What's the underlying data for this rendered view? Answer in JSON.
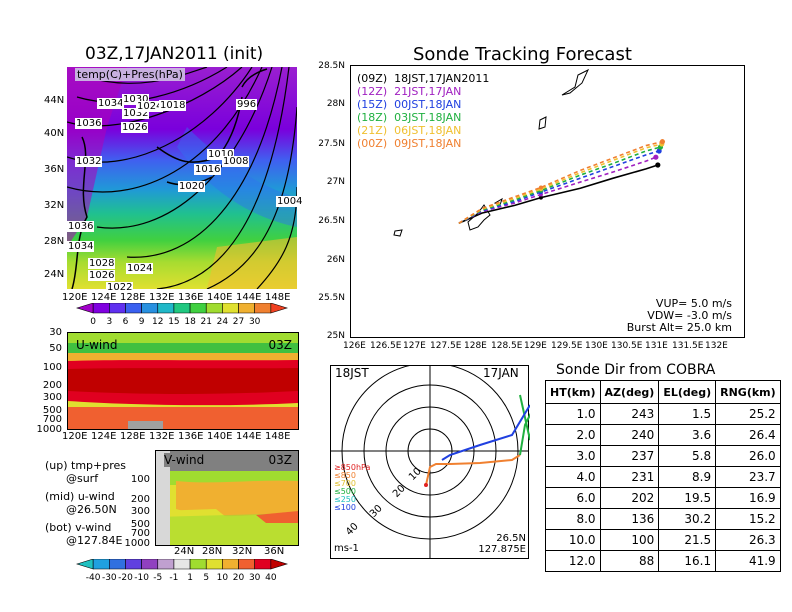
{
  "left_title": "03Z,17JAN2011 (init)",
  "map_label": "temp(C)+Pres(hPa)",
  "map": {
    "lat_ticks": [
      "44N",
      "40N",
      "36N",
      "32N",
      "28N",
      "24N"
    ],
    "lon_ticks": [
      "120E",
      "124E",
      "128E",
      "132E",
      "136E",
      "140E",
      "144E",
      "148E"
    ],
    "pressure_labels": [
      "1034",
      "1030",
      "1036",
      "1032",
      "1032",
      "1026",
      "1024",
      "1018",
      "996",
      "1010",
      "1016",
      "1008",
      "1020",
      "1004",
      "1036",
      "1034",
      "1028",
      "1026",
      "1024",
      "1022"
    ]
  },
  "temp_colorbar": {
    "ticks": [
      "0",
      "3",
      "6",
      "9",
      "12",
      "15",
      "18",
      "21",
      "24",
      "27",
      "30"
    ],
    "colors": [
      "#a000c8",
      "#8000e0",
      "#6030f0",
      "#3a60f0",
      "#2890e0",
      "#20b8c8",
      "#20c880",
      "#40d040",
      "#a0dc30",
      "#e0e030",
      "#f0b030",
      "#f08030",
      "#f04020"
    ]
  },
  "uwind": {
    "label": "U-wind",
    "time": "03Z",
    "y_ticks": [
      "30",
      "50",
      "100",
      "200",
      "300",
      "500",
      "700",
      "1000"
    ],
    "x_ticks": [
      "120E",
      "124E",
      "128E",
      "132E",
      "136E",
      "140E",
      "144E",
      "148E"
    ]
  },
  "vwind": {
    "label": "V-wind",
    "time": "03Z",
    "y_ticks": [
      "100",
      "200",
      "300",
      "500",
      "700",
      "1000"
    ],
    "x_ticks": [
      "24N",
      "28N",
      "32N",
      "36N"
    ]
  },
  "notes": {
    "up": "(up) tmp+pres\n      @surf",
    "mid": "(mid) u-wind\n      @26.50N",
    "bot": "(bot) v-wind\n      @127.84E"
  },
  "wind_colorbar": {
    "ticks": [
      "-40",
      "-30",
      "-20",
      "-10",
      "-5",
      "-1",
      "1",
      "5",
      "10",
      "20",
      "30",
      "40"
    ],
    "colors": [
      "#20c0c0",
      "#20a0e0",
      "#3070e0",
      "#6040e0",
      "#9040c0",
      "#c0a0d0",
      "#e6e6e6",
      "#a0dc30",
      "#e0e030",
      "#f0b030",
      "#f06030",
      "#e00020",
      "#c00000"
    ]
  },
  "right_title": "Sonde Tracking Forecast",
  "track_map": {
    "lat_ticks": [
      "28.5N",
      "28N",
      "27.5N",
      "27N",
      "26.5N",
      "26N",
      "25.5N",
      "25N"
    ],
    "lon_ticks": [
      "126E",
      "126.5E",
      "127E",
      "127.5E",
      "128E",
      "128.5E",
      "129E",
      "129.5E",
      "130E",
      "130.5E",
      "131E",
      "131.5E",
      "132E"
    ],
    "legend": [
      {
        "code": "(09Z)",
        "time": "18JST,17JAN2011",
        "color": "#000000"
      },
      {
        "code": "(12Z)",
        "time": "21JST,17JAN",
        "color": "#a020c0"
      },
      {
        "code": "(15Z)",
        "time": "00JST,18JAN",
        "color": "#2040e0"
      },
      {
        "code": "(18Z)",
        "time": "03JST,18JAN",
        "color": "#20b040"
      },
      {
        "code": "(21Z)",
        "time": "06JST,18JAN",
        "color": "#f0c030"
      },
      {
        "code": "(00Z)",
        "time": "09JST,18JAN",
        "color": "#f08030"
      }
    ],
    "params": [
      "VUP=  5.0 m/s",
      "VDW= -3.0 m/s",
      "Burst Alt= 25.0 km"
    ]
  },
  "hodo": {
    "left_label": "18JST",
    "right_label": "17JAN",
    "ring_labels": [
      "10",
      "20",
      "30",
      "40"
    ],
    "unit": "ms-1",
    "location_lat": "26.5N",
    "location_lon": "127.875E",
    "levels": [
      "≥850hPa",
      "≤850",
      "≤700",
      "≤500",
      "≤250",
      "≤100"
    ],
    "level_colors": [
      "#e02020",
      "#f08030",
      "#e0c030",
      "#20b040",
      "#20c0c0",
      "#2040e0"
    ]
  },
  "sonde_table": {
    "title": "Sonde Dir from COBRA",
    "headers": [
      "HT(km)",
      "AZ(deg)",
      "EL(deg)",
      "RNG(km)"
    ],
    "rows": [
      [
        "1.0",
        "243",
        "1.5",
        "25.2"
      ],
      [
        "2.0",
        "240",
        "3.6",
        "26.4"
      ],
      [
        "3.0",
        "237",
        "5.8",
        "26.0"
      ],
      [
        "4.0",
        "231",
        "8.9",
        "23.7"
      ],
      [
        "6.0",
        "202",
        "19.5",
        "16.9"
      ],
      [
        "8.0",
        "136",
        "30.2",
        "15.2"
      ],
      [
        "10.0",
        "100",
        "21.5",
        "26.3"
      ],
      [
        "12.0",
        "88",
        "16.1",
        "41.9"
      ]
    ]
  },
  "chart_data": [
    {
      "type": "line",
      "title": "Sonde Tracking Forecast",
      "xlabel": "",
      "ylabel": "",
      "xlim": [
        126,
        132
      ],
      "ylim": [
        25,
        28.5
      ],
      "series": [
        {
          "name": "(09Z) 18JST,17JAN2011",
          "color": "#000000",
          "x": [
            127.65,
            128.0,
            128.5,
            128.9,
            129.5,
            130.0,
            130.5,
            130.68
          ],
          "y": [
            26.47,
            26.6,
            26.7,
            26.8,
            26.92,
            27.05,
            27.17,
            27.22
          ]
        },
        {
          "name": "(12Z) 21JST,17JAN",
          "color": "#a020c0",
          "x": [
            127.65,
            128.0,
            128.5,
            128.9,
            129.5,
            130.0,
            130.5,
            130.65
          ],
          "y": [
            26.47,
            26.62,
            26.73,
            26.84,
            27.0,
            27.13,
            27.27,
            27.32
          ]
        },
        {
          "name": "(15Z) 00JST,18JAN",
          "color": "#2040e0",
          "x": [
            127.65,
            128.0,
            128.5,
            128.9,
            129.5,
            130.0,
            130.5,
            130.7
          ],
          "y": [
            26.47,
            26.63,
            26.75,
            26.87,
            27.05,
            27.2,
            27.35,
            27.4
          ]
        },
        {
          "name": "(18Z) 03JST,18JAN",
          "color": "#20b040",
          "x": [
            127.65,
            128.0,
            128.5,
            128.9,
            129.5,
            130.0,
            130.5,
            130.72
          ],
          "y": [
            26.47,
            26.64,
            26.77,
            26.89,
            27.09,
            27.24,
            27.4,
            27.45
          ]
        },
        {
          "name": "(21Z) 06JST,18JAN",
          "color": "#f0c030",
          "x": [
            127.65,
            128.0,
            128.5,
            128.9,
            129.5,
            130.0,
            130.5,
            130.74
          ],
          "y": [
            26.47,
            26.65,
            26.79,
            26.91,
            27.12,
            27.28,
            27.44,
            27.49
          ]
        },
        {
          "name": "(00Z) 09JST,18JAN",
          "color": "#f08030",
          "x": [
            127.65,
            128.0,
            128.5,
            128.9,
            129.5,
            130.0,
            130.5,
            130.75
          ],
          "y": [
            26.47,
            26.66,
            26.81,
            26.93,
            27.15,
            27.31,
            27.47,
            27.52
          ]
        }
      ]
    },
    {
      "type": "table",
      "title": "Sonde Dir from COBRA",
      "columns": [
        "HT(km)",
        "AZ(deg)",
        "EL(deg)",
        "RNG(km)"
      ],
      "rows": [
        [
          1.0,
          243,
          1.5,
          25.2
        ],
        [
          2.0,
          240,
          3.6,
          26.4
        ],
        [
          3.0,
          237,
          5.8,
          26.0
        ],
        [
          4.0,
          231,
          8.9,
          23.7
        ],
        [
          6.0,
          202,
          19.5,
          16.9
        ],
        [
          8.0,
          136,
          30.2,
          15.2
        ],
        [
          10.0,
          100,
          21.5,
          26.3
        ],
        [
          12.0,
          88,
          16.1,
          41.9
        ]
      ]
    }
  ]
}
